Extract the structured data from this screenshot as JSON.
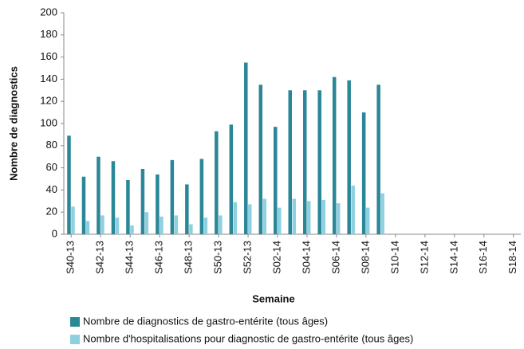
{
  "chart_data": {
    "type": "bar",
    "x_label": "Semaine",
    "y_label": "Nombre de diagnostics",
    "categories": [
      "S40-13",
      null,
      "S42-13",
      null,
      "S44-13",
      null,
      "S46-13",
      null,
      "S48-13",
      null,
      "S50-13",
      null,
      "S52-13",
      null,
      "S02-14",
      null,
      "S04-14",
      null,
      "S06-14",
      null,
      "S08-14",
      null,
      "S10-14",
      null,
      "S12-14",
      null,
      "S14-14",
      null,
      "S16-14",
      null,
      "S18-14"
    ],
    "series": [
      {
        "name": "Nombre de diagnostics de gastro-entérite (tous âges)",
        "color": "#2a8797",
        "values": [
          89,
          52,
          70,
          66,
          49,
          59,
          54,
          67,
          45,
          68,
          93,
          99,
          155,
          135,
          97,
          130,
          130,
          130,
          142,
          139,
          110,
          135,
          null,
          null,
          null,
          null,
          null,
          null,
          null,
          null,
          null
        ]
      },
      {
        "name": "Nombre d'hospitalisations pour diagnostic de gastro-entérite (tous âges)",
        "color": "#8dd0e0",
        "values": [
          25,
          12,
          17,
          15,
          8,
          20,
          16,
          17,
          9,
          15,
          17,
          29,
          27,
          32,
          24,
          32,
          30,
          31,
          28,
          44,
          24,
          37,
          null,
          null,
          null,
          null,
          null,
          null,
          null,
          null,
          null
        ]
      }
    ],
    "ylim": [
      0,
      200
    ],
    "yticks": [
      0,
      20,
      40,
      60,
      80,
      100,
      120,
      140,
      160,
      180,
      200
    ],
    "grid": false
  }
}
